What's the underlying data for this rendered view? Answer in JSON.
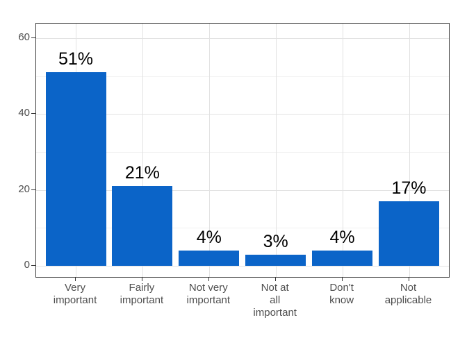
{
  "chart_data": {
    "type": "bar",
    "title": "",
    "xlabel": "",
    "ylabel": "",
    "categories": [
      "Very important",
      "Fairly important",
      "Not very important",
      "Not at all important",
      "Don't know",
      "Not applicable"
    ],
    "category_label_lines": [
      [
        "Very",
        "important"
      ],
      [
        "Fairly",
        "important"
      ],
      [
        "Not very",
        "important"
      ],
      [
        "Not at",
        "all",
        "important"
      ],
      [
        "Don't",
        "know"
      ],
      [
        "Not",
        "applicable"
      ]
    ],
    "values": [
      51,
      21,
      4,
      3,
      4,
      17
    ],
    "value_labels": [
      "51%",
      "21%",
      "4%",
      "3%",
      "4%",
      "17%"
    ],
    "ylim": [
      0,
      63.5
    ],
    "yticks": [
      0,
      20,
      40,
      60
    ],
    "ytick_labels": [
      "0",
      "20",
      "40",
      "60"
    ],
    "yminor": [
      10,
      30,
      50
    ],
    "grid": "on",
    "legend": "none",
    "colors": {
      "bar": "#0b64c8",
      "axis_text": "#4d4d4d",
      "value_label": "#000000",
      "panel_border": "#3c3c3c",
      "grid_major": "#e2e2e2",
      "grid_minor": "#f1f1f1",
      "background": "#ffffff"
    }
  }
}
